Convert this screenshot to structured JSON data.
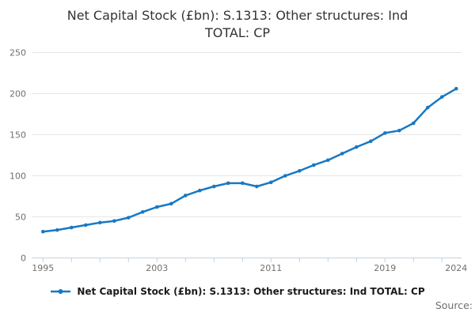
{
  "title": "Net Capital Stock (£bn): S.1313: Other structures: Ind TOTAL: CP",
  "source_label": "Source:",
  "legend": {
    "label": "Net Capital Stock (£bn): S.1313: Other structures: Ind TOTAL: CP"
  },
  "colors": {
    "line": "#1878c2",
    "grid": "#e6e6e6",
    "axis": "#c3d2e0",
    "axis_text": "#6f6f6f"
  },
  "chart_data": {
    "type": "line",
    "title": "Net Capital Stock (£bn): S.1313: Other structures: Ind TOTAL: CP",
    "series": [
      {
        "name": "Net Capital Stock (£bn): S.1313: Other structures: Ind TOTAL: CP",
        "x": [
          1995,
          1996,
          1997,
          1998,
          1999,
          2000,
          2001,
          2002,
          2003,
          2004,
          2005,
          2006,
          2007,
          2008,
          2009,
          2010,
          2011,
          2012,
          2013,
          2014,
          2015,
          2016,
          2017,
          2018,
          2019,
          2020,
          2021,
          2022,
          2023,
          2024
        ],
        "values": [
          32,
          34,
          37,
          40,
          43,
          45,
          49,
          56,
          62,
          66,
          76,
          82,
          87,
          91,
          91,
          87,
          92,
          100,
          106,
          113,
          119,
          127,
          135,
          142,
          152,
          155,
          164,
          183,
          196,
          206
        ]
      }
    ],
    "xlabel": "",
    "ylabel": "",
    "xlim": [
      1995,
      2024
    ],
    "ylim": [
      0,
      250
    ],
    "y_ticks": [
      0,
      50,
      100,
      150,
      200,
      250
    ],
    "x_tick_labels": [
      {
        "year": 1995,
        "label": "1995"
      },
      {
        "year": 2003,
        "label": "2003"
      },
      {
        "year": 2011,
        "label": "2011"
      },
      {
        "year": 2019,
        "label": "2019"
      },
      {
        "year": 2024,
        "label": "2024"
      }
    ],
    "x_minor_tick_years": [
      1995,
      1997,
      1999,
      2001,
      2003,
      2005,
      2007,
      2009,
      2011,
      2013,
      2015,
      2017,
      2019,
      2021,
      2023
    ],
    "grid": true,
    "legend_position": "bottom",
    "marker": "point"
  }
}
